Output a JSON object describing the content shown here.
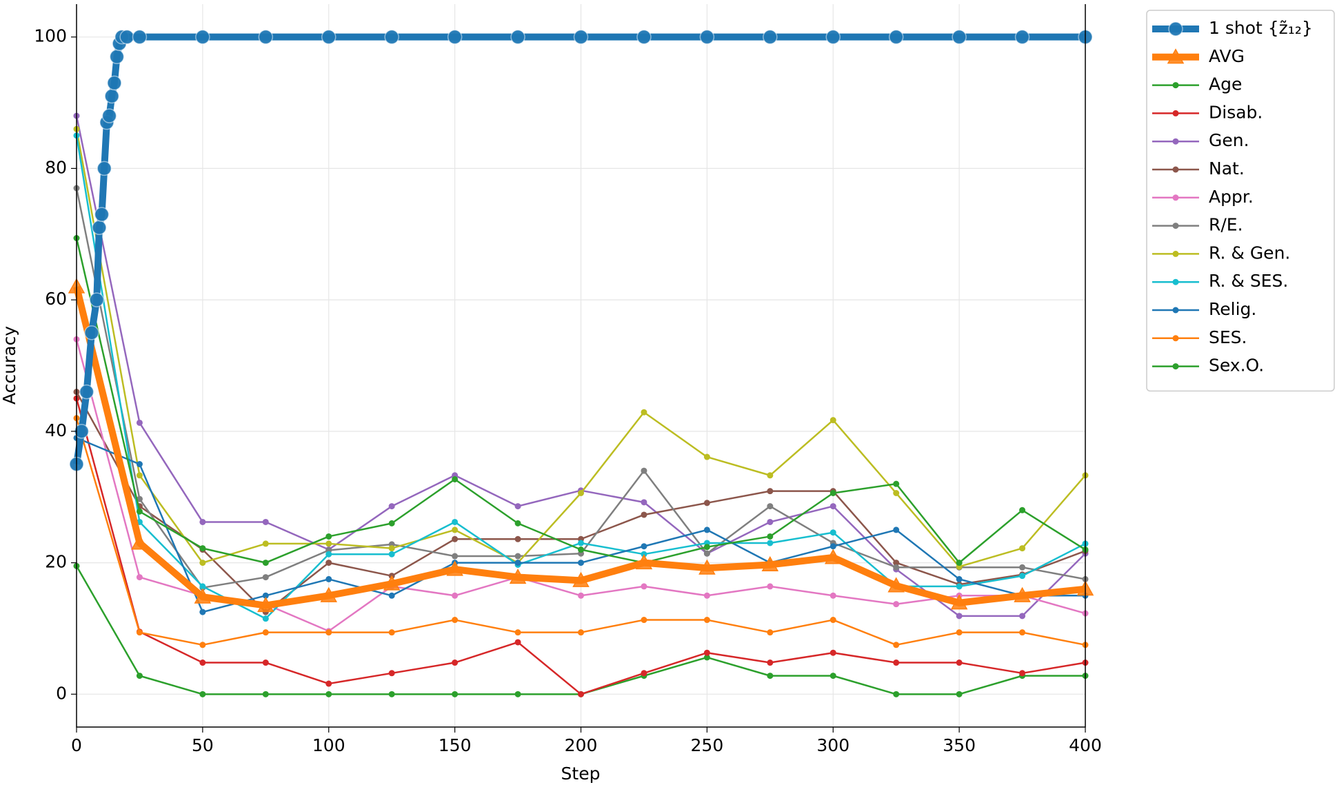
{
  "chart_data": {
    "type": "line",
    "x_label": "Step",
    "y_label": "Accuracy",
    "x": [
      0,
      25,
      50,
      75,
      100,
      125,
      150,
      175,
      200,
      225,
      250,
      275,
      300,
      325,
      350,
      375,
      400
    ],
    "xlim": [
      0,
      400
    ],
    "ylim": [
      -5,
      105
    ],
    "xticks": [
      0,
      50,
      100,
      150,
      200,
      250,
      300,
      350,
      400
    ],
    "yticks": [
      0,
      20,
      40,
      60,
      80,
      100
    ],
    "grid": true,
    "legend": "outside-upper-right",
    "series": [
      {
        "name": "1 shot {z̃₁₂}",
        "color": "#1f77b4",
        "marker": "circle",
        "x": [
          0,
          2,
          4,
          6,
          8,
          9,
          10,
          11,
          12,
          13,
          14,
          15,
          16,
          17,
          18,
          20,
          25,
          50,
          75,
          100,
          125,
          150,
          175,
          200,
          225,
          250,
          275,
          300,
          325,
          350,
          375,
          400
        ],
        "values": [
          35,
          40,
          46,
          55,
          60,
          71,
          73,
          80,
          87,
          88,
          91,
          93,
          97,
          99,
          100,
          100,
          100,
          100,
          100,
          100,
          100,
          100,
          100,
          100,
          100,
          100,
          100,
          100,
          100,
          100,
          100,
          100
        ]
      },
      {
        "name": "AVG",
        "color": "#ff7f0e",
        "marker": "triangle",
        "values": [
          62,
          23,
          14.8,
          13.5,
          15,
          16.8,
          19,
          17.8,
          17.3,
          20,
          19.2,
          19.7,
          20.8,
          16.5,
          13.9,
          15,
          16
        ]
      },
      {
        "name": "Age",
        "color": "#2ca02c",
        "marker": "dot",
        "values": [
          19.5,
          2.8,
          0,
          0,
          0,
          0,
          0,
          0,
          0,
          2.8,
          5.6,
          2.8,
          2.8,
          0,
          0,
          2.8,
          2.8
        ]
      },
      {
        "name": "Disab.",
        "color": "#d62728",
        "marker": "dot",
        "values": [
          45,
          9.5,
          4.8,
          4.8,
          1.6,
          3.2,
          4.8,
          7.9,
          0,
          3.2,
          6.3,
          4.8,
          6.3,
          4.8,
          4.8,
          3.2,
          4.8
        ]
      },
      {
        "name": "Gen.",
        "color": "#9467bd",
        "marker": "dot",
        "values": [
          88,
          41.3,
          26.2,
          26.2,
          22,
          28.6,
          33.3,
          28.6,
          31,
          29.2,
          21.4,
          26.2,
          28.6,
          19,
          11.9,
          11.9,
          21.4
        ]
      },
      {
        "name": "Nat.",
        "color": "#8c564b",
        "marker": "dot",
        "values": [
          46,
          28.6,
          22,
          12.5,
          20,
          18,
          23.6,
          23.6,
          23.6,
          27.3,
          29.1,
          30.9,
          30.9,
          20,
          16.7,
          18.2,
          21.8
        ]
      },
      {
        "name": "Appr.",
        "color": "#e377c2",
        "marker": "dot",
        "values": [
          54,
          17.8,
          15,
          13.7,
          9.6,
          16.4,
          15,
          17.8,
          15,
          16.4,
          15,
          16.4,
          15,
          13.7,
          15,
          15,
          12.3
        ]
      },
      {
        "name": "R/E.",
        "color": "#7f7f7f",
        "marker": "dot",
        "values": [
          77,
          29.7,
          16.2,
          17.8,
          21.9,
          22.8,
          21,
          21,
          21.4,
          34,
          21.4,
          28.6,
          23,
          19.3,
          19.3,
          19.3,
          17.5
        ]
      },
      {
        "name": "R. & Gen.",
        "color": "#bcbd22",
        "marker": "dot",
        "values": [
          86,
          33.3,
          20,
          22.9,
          22.9,
          22.2,
          25,
          20,
          30.6,
          42.9,
          36.1,
          33.3,
          41.7,
          30.6,
          19.4,
          22.2,
          33.3
        ]
      },
      {
        "name": "R. & SES.",
        "color": "#17becf",
        "marker": "dot",
        "values": [
          85,
          26.2,
          16.4,
          11.5,
          21.3,
          21.3,
          26.2,
          19.7,
          23,
          21.3,
          23,
          23,
          24.6,
          16.4,
          16.4,
          18,
          22.9
        ]
      },
      {
        "name": "Relig.",
        "color": "#1f77b4",
        "marker": "dot",
        "values": [
          39,
          35,
          12.5,
          15,
          17.5,
          15,
          20,
          20,
          20,
          22.5,
          25,
          20,
          22.5,
          25,
          17.5,
          15,
          15
        ]
      },
      {
        "name": "SES.",
        "color": "#ff7f0e",
        "marker": "dot",
        "values": [
          42,
          9.4,
          7.5,
          9.4,
          9.4,
          9.4,
          11.3,
          9.4,
          9.4,
          11.3,
          11.3,
          9.4,
          11.3,
          7.5,
          9.4,
          9.4,
          7.5
        ]
      },
      {
        "name": "Sex.O.",
        "color": "#2ca02c",
        "marker": "dot",
        "values": [
          69.4,
          27.8,
          22.2,
          20,
          24,
          26,
          32.7,
          26,
          22,
          20,
          22.4,
          24,
          30.6,
          32,
          20,
          28,
          22
        ]
      }
    ]
  }
}
